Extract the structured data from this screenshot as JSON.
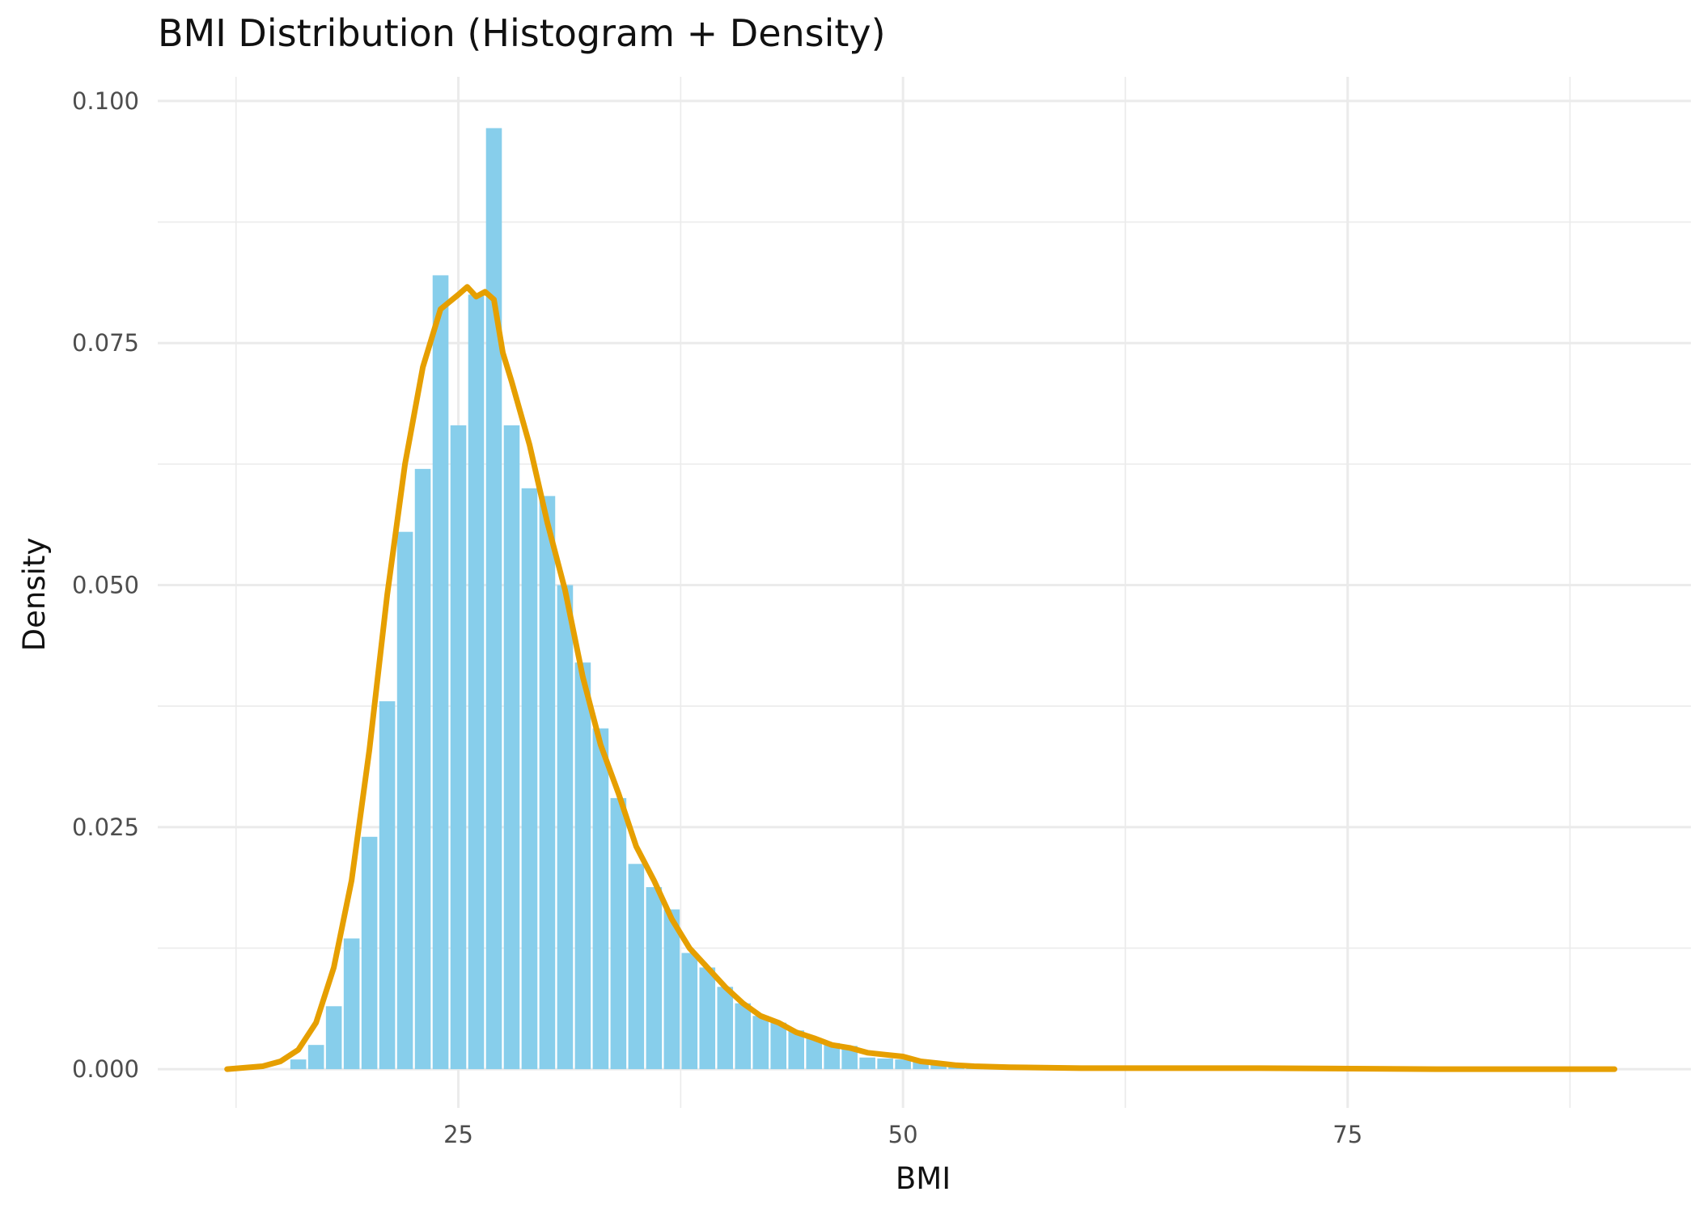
{
  "chart_data": {
    "type": "bar",
    "title": "BMI Distribution (Histogram + Density)",
    "xlabel": "BMI",
    "ylabel": "Density",
    "xlim": [
      8.1,
      94.3
    ],
    "ylim": [
      -0.004,
      0.1025
    ],
    "x_ticks": [
      25,
      50,
      75
    ],
    "x_tick_labels": [
      "25",
      "50",
      "75"
    ],
    "x_minor_gridlines": [
      12.5,
      37.5,
      62.5,
      87.5
    ],
    "y_ticks": [
      0,
      0.025,
      0.05,
      0.075,
      0.1
    ],
    "y_tick_labels": [
      "0.000",
      "0.025",
      "0.050",
      "0.075",
      "0.100"
    ],
    "y_minor_gridlines": [
      0.0125,
      0.0375,
      0.0625,
      0.0875
    ],
    "grid": true,
    "legend": "none",
    "colors": {
      "bars": "#87CEEB",
      "density": "#E69F00",
      "grid": "#EBEBEB"
    },
    "histogram": {
      "bin_width": 1,
      "bin_centers": [
        16,
        17,
        18,
        19,
        20,
        21,
        22,
        23,
        24,
        25,
        26,
        27,
        28,
        29,
        30,
        31,
        32,
        33,
        34,
        35,
        36,
        37,
        38,
        39,
        40,
        41,
        42,
        43,
        44,
        45,
        46,
        47,
        48,
        49,
        50,
        51,
        52,
        53,
        54,
        55,
        56
      ],
      "values": [
        0.001,
        0.0025,
        0.0065,
        0.0135,
        0.024,
        0.038,
        0.0555,
        0.062,
        0.082,
        0.0665,
        0.08,
        0.0972,
        0.0665,
        0.06,
        0.0592,
        0.05,
        0.042,
        0.0352,
        0.028,
        0.0212,
        0.0188,
        0.0165,
        0.012,
        0.0105,
        0.0085,
        0.0068,
        0.0055,
        0.0048,
        0.004,
        0.0032,
        0.0027,
        0.0024,
        0.0012,
        0.0011,
        0.001,
        0.0008,
        0.0005,
        0.0004,
        0.0003,
        0.0002,
        0.0001
      ]
    },
    "density": {
      "x": [
        12,
        14,
        15,
        16,
        17,
        18,
        19,
        20,
        21,
        22,
        23,
        24,
        25,
        25.5,
        26,
        26.5,
        27,
        27.5,
        28,
        29,
        30,
        31,
        32,
        33,
        34,
        35,
        36,
        37,
        38,
        39,
        40,
        41,
        42,
        43,
        44,
        45,
        46,
        47,
        48,
        49,
        50,
        51,
        52,
        53,
        54,
        56,
        60,
        65,
        70,
        80,
        90
      ],
      "y": [
        0,
        0.0003,
        0.0008,
        0.002,
        0.0048,
        0.0105,
        0.0195,
        0.033,
        0.049,
        0.0625,
        0.0725,
        0.0785,
        0.08,
        0.0808,
        0.0798,
        0.0803,
        0.0795,
        0.074,
        0.071,
        0.0645,
        0.0565,
        0.0495,
        0.0405,
        0.0335,
        0.0285,
        0.023,
        0.0195,
        0.0155,
        0.0125,
        0.0105,
        0.0085,
        0.0068,
        0.0055,
        0.0048,
        0.0038,
        0.0032,
        0.0025,
        0.0022,
        0.0017,
        0.0015,
        0.0013,
        0.0008,
        0.0006,
        0.0004,
        0.0003,
        0.0002,
        0.0001,
        0.0001,
        0.0001,
        0,
        0
      ]
    }
  }
}
